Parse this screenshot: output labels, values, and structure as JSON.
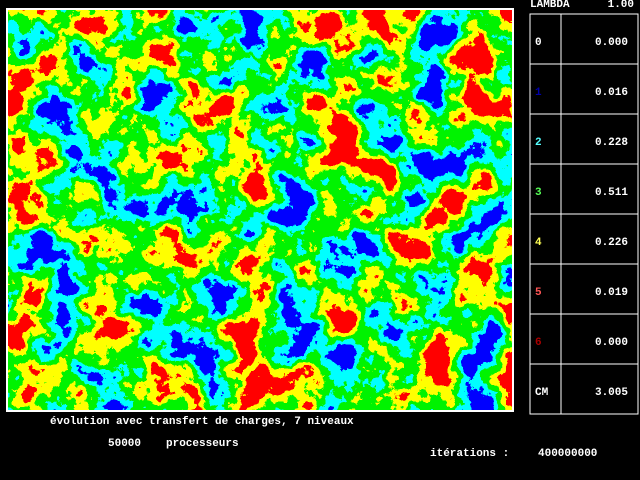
{
  "header": {
    "label": "LAMBDA",
    "value": "1.00"
  },
  "rows": [
    {
      "level": "0",
      "value": "0.000",
      "color": "#ffffff"
    },
    {
      "level": "1",
      "value": "0.016",
      "color": "#0000aa"
    },
    {
      "level": "2",
      "value": "0.228",
      "color": "#55ffff"
    },
    {
      "level": "3",
      "value": "0.511",
      "color": "#55ff55"
    },
    {
      "level": "4",
      "value": "0.226",
      "color": "#ffff55"
    },
    {
      "level": "5",
      "value": "0.019",
      "color": "#ff5555"
    },
    {
      "level": "6",
      "value": "0.000",
      "color": "#aa0000"
    },
    {
      "level": "CM",
      "value": "3.005",
      "color": "#ffffff"
    }
  ],
  "caption": "évolution avec transfert de charges, 7 niveaux",
  "processors": {
    "count": "50000",
    "label": "processeurs"
  },
  "iterations": {
    "label": "itérations :",
    "value": "400000000"
  }
}
